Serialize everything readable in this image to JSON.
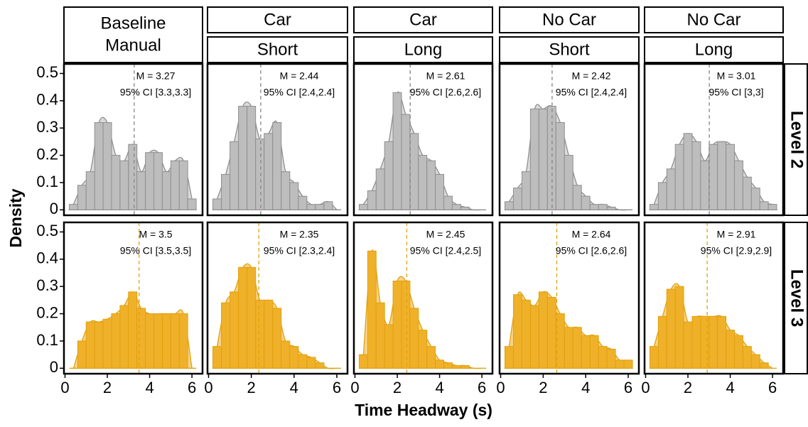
{
  "chart_data": {
    "type": "histogram",
    "x_label": "Time Headway (s)",
    "y_label": "Density",
    "xlim": [
      -0.05,
      6.5
    ],
    "xticks": [
      0,
      2,
      4,
      6
    ],
    "ylim": [
      -0.02,
      0.535
    ],
    "yticks": [
      0.0,
      0.1,
      0.2,
      0.3,
      0.4,
      0.5
    ],
    "bins": [
      0.2,
      0.6,
      1.0,
      1.4,
      1.8,
      2.2,
      2.6,
      3.0,
      3.4,
      3.8,
      4.2,
      4.6,
      5.0,
      5.4,
      5.8,
      6.2
    ],
    "columns": [
      {
        "labels": [
          "Baseline",
          "Manual"
        ],
        "merged": true
      },
      {
        "labels": [
          "Car",
          "Short"
        ],
        "merged": false
      },
      {
        "labels": [
          "Car",
          "Long"
        ],
        "merged": false
      },
      {
        "labels": [
          "No Car",
          "Short"
        ],
        "merged": false
      },
      {
        "labels": [
          "No Car",
          "Long"
        ],
        "merged": false
      }
    ],
    "rows": [
      {
        "label": "Level 2",
        "color": "#bdbdbd",
        "line_color": "#8f8f8f"
      },
      {
        "label": "Level 3",
        "color": "#efb12a",
        "line_color": "#e3a10c"
      }
    ],
    "panels": [
      {
        "row": 0,
        "col": 0,
        "mean": 3.27,
        "mean_label": "M = 3.27",
        "ci_label": "95% CI [3.3,3.3]",
        "values": [
          0.02,
          0.09,
          0.14,
          0.32,
          0.32,
          0.2,
          0.18,
          0.24,
          0.14,
          0.21,
          0.21,
          0.14,
          0.18,
          0.18,
          0.04
        ]
      },
      {
        "row": 0,
        "col": 1,
        "mean": 2.44,
        "mean_label": "M = 2.44",
        "ci_label": "95% CI [2.4,2.4]",
        "values": [
          0.04,
          0.13,
          0.25,
          0.38,
          0.38,
          0.26,
          0.28,
          0.32,
          0.14,
          0.1,
          0.05,
          0.02,
          0.02,
          0.03,
          0
        ]
      },
      {
        "row": 0,
        "col": 2,
        "mean": 2.61,
        "mean_label": "M = 2.61",
        "ci_label": "95% CI [2.6,2.6]",
        "values": [
          0.02,
          0.07,
          0.15,
          0.25,
          0.43,
          0.35,
          0.28,
          0.2,
          0.18,
          0.13,
          0.05,
          0.02,
          0.01,
          0,
          0
        ]
      },
      {
        "row": 0,
        "col": 3,
        "mean": 2.42,
        "mean_label": "M = 2.42",
        "ci_label": "95% CI [2.4,2.4]",
        "values": [
          0.03,
          0.08,
          0.14,
          0.37,
          0.37,
          0.38,
          0.32,
          0.2,
          0.09,
          0.05,
          0.02,
          0.02,
          0.01,
          0,
          0
        ]
      },
      {
        "row": 0,
        "col": 4,
        "mean": 3.01,
        "mean_label": "M = 3.01",
        "ci_label": "95% CI [3,3]",
        "values": [
          0.02,
          0.1,
          0.15,
          0.24,
          0.28,
          0.25,
          0.18,
          0.24,
          0.25,
          0.24,
          0.18,
          0.12,
          0.08,
          0.03,
          0.02
        ]
      },
      {
        "row": 1,
        "col": 0,
        "mean": 3.5,
        "mean_label": "M = 3.5",
        "ci_label": "95% CI [3.5,3.5]",
        "values": [
          0,
          0.1,
          0.17,
          0.17,
          0.18,
          0.2,
          0.23,
          0.28,
          0.22,
          0.2,
          0.2,
          0.2,
          0.2,
          0.2,
          0
        ]
      },
      {
        "row": 1,
        "col": 1,
        "mean": 2.35,
        "mean_label": "M = 2.35",
        "ci_label": "95% CI [2.3,2.4]",
        "values": [
          0.08,
          0.24,
          0.28,
          0.37,
          0.37,
          0.25,
          0.25,
          0.22,
          0.1,
          0.08,
          0.05,
          0.04,
          0.02,
          0,
          0
        ]
      },
      {
        "row": 1,
        "col": 2,
        "mean": 2.45,
        "mean_label": "M = 2.45",
        "ci_label": "95% CI [2.4,2.5]",
        "values": [
          0.05,
          0.43,
          0.24,
          0.16,
          0.32,
          0.32,
          0.22,
          0.14,
          0.08,
          0.03,
          0.02,
          0.01,
          0.01,
          0,
          0
        ]
      },
      {
        "row": 1,
        "col": 3,
        "mean": 2.64,
        "mean_label": "M = 2.64",
        "ci_label": "95% CI [2.6,2.6]",
        "values": [
          0.08,
          0.27,
          0.25,
          0.23,
          0.28,
          0.26,
          0.2,
          0.15,
          0.15,
          0.12,
          0.12,
          0.08,
          0.07,
          0.03,
          0.03
        ]
      },
      {
        "row": 1,
        "col": 4,
        "mean": 2.91,
        "mean_label": "M = 2.91",
        "ci_label": "95% CI [2.9,2.9]",
        "values": [
          0.08,
          0.19,
          0.29,
          0.3,
          0.17,
          0.19,
          0.19,
          0.19,
          0.19,
          0.14,
          0.12,
          0.08,
          0.05,
          0.02,
          0
        ]
      }
    ]
  }
}
